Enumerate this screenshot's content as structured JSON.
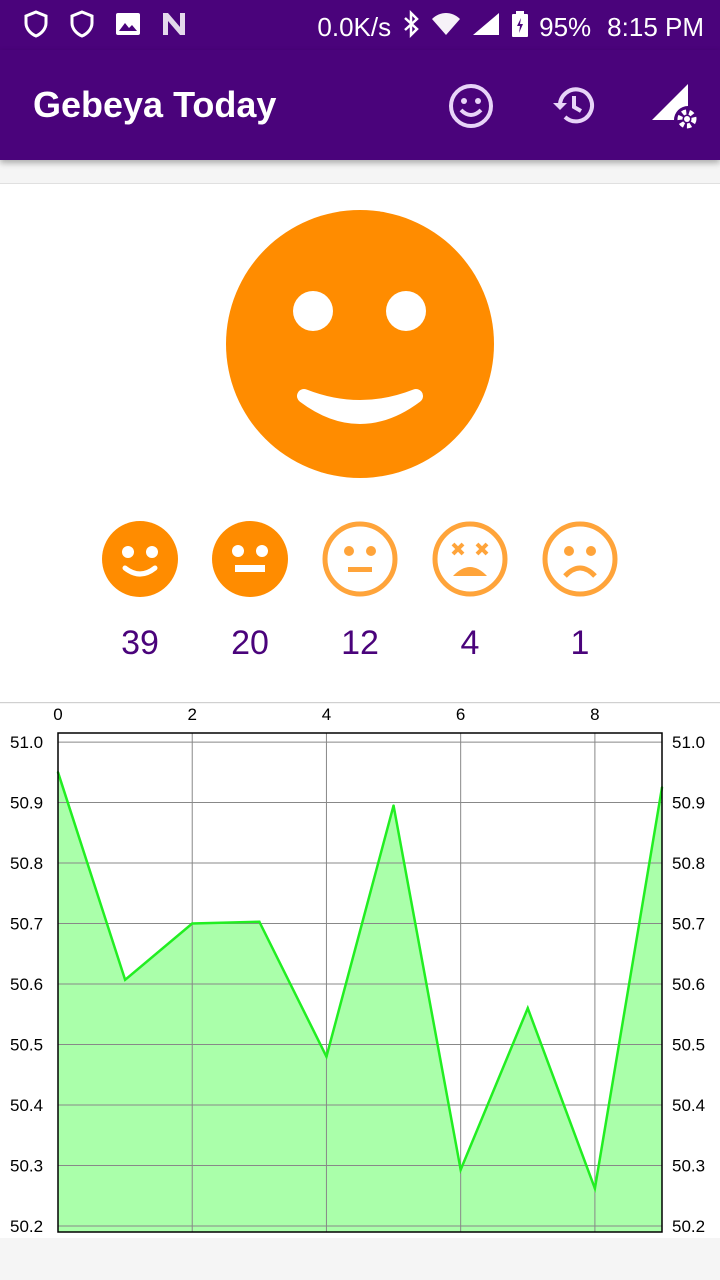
{
  "status_bar": {
    "network_speed": "0.0K/s",
    "battery": "95%",
    "time": "8:15 PM",
    "icons": [
      "shield-icon",
      "shield-outline-icon",
      "image-icon",
      "n-icon",
      "bluetooth-icon",
      "wifi-icon",
      "signal-icon",
      "battery-icon"
    ]
  },
  "app_bar": {
    "title": "Gebeya Today",
    "actions": [
      "smiley-icon",
      "history-icon",
      "signal-settings-icon"
    ]
  },
  "mood": {
    "current": "happy",
    "color": "#ff8c00",
    "options": [
      {
        "icon": "happy-face-icon",
        "count": "39"
      },
      {
        "icon": "neutral-face-icon",
        "count": "20"
      },
      {
        "icon": "meh-face-icon",
        "count": "12"
      },
      {
        "icon": "dizzy-face-icon",
        "count": "4"
      },
      {
        "icon": "sad-face-icon",
        "count": "1"
      }
    ]
  },
  "chart_data": {
    "type": "area",
    "x": [
      0,
      1,
      2,
      3,
      4,
      5,
      6,
      7,
      8,
      9
    ],
    "values": [
      50.95,
      50.607,
      50.7,
      50.703,
      50.48,
      50.895,
      50.293,
      50.56,
      50.262,
      50.925
    ],
    "x_ticks": [
      "0",
      "2",
      "4",
      "6",
      "8"
    ],
    "y_ticks": [
      "51.0",
      "50.9",
      "50.8",
      "50.7",
      "50.6",
      "50.5",
      "50.4",
      "50.3",
      "50.2"
    ],
    "xlim": [
      0,
      9
    ],
    "ylim": [
      50.19,
      51.015
    ],
    "line_color": "#22ee22",
    "fill_color": "#aaffaa",
    "grid": true
  }
}
